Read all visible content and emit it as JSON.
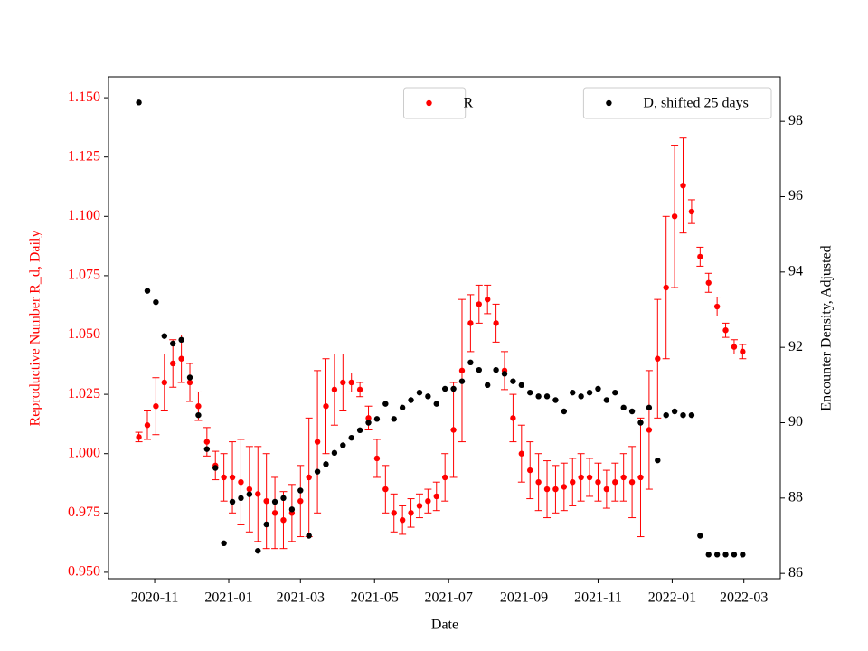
{
  "chart_data": {
    "type": "scatter",
    "xlabel": "Date",
    "ylabel": "Reproductive Number R_d, Daily",
    "y2label": "Encounter Density, Adjusted",
    "x": [
      "2020-10-19",
      "2020-10-26",
      "2020-11-02",
      "2020-11-09",
      "2020-11-16",
      "2020-11-23",
      "2020-11-30",
      "2020-12-07",
      "2020-12-14",
      "2020-12-21",
      "2020-12-28",
      "2021-01-04",
      "2021-01-11",
      "2021-01-18",
      "2021-01-25",
      "2021-02-01",
      "2021-02-08",
      "2021-02-15",
      "2021-02-22",
      "2021-03-01",
      "2021-03-08",
      "2021-03-15",
      "2021-03-22",
      "2021-03-29",
      "2021-04-05",
      "2021-04-12",
      "2021-04-19",
      "2021-04-26",
      "2021-05-03",
      "2021-05-10",
      "2021-05-17",
      "2021-05-24",
      "2021-05-31",
      "2021-06-07",
      "2021-06-14",
      "2021-06-21",
      "2021-06-28",
      "2021-07-05",
      "2021-07-12",
      "2021-07-19",
      "2021-07-26",
      "2021-08-02",
      "2021-08-09",
      "2021-08-16",
      "2021-08-23",
      "2021-08-30",
      "2021-09-06",
      "2021-09-13",
      "2021-09-20",
      "2021-09-27",
      "2021-10-04",
      "2021-10-11",
      "2021-10-18",
      "2021-10-25",
      "2021-11-01",
      "2021-11-08",
      "2021-11-15",
      "2021-11-22",
      "2021-11-29",
      "2021-12-06",
      "2021-12-13",
      "2021-12-20",
      "2021-12-27",
      "2022-01-03",
      "2022-01-10",
      "2022-01-17",
      "2022-01-24",
      "2022-01-31",
      "2022-02-07",
      "2022-02-14",
      "2022-02-21",
      "2022-02-28"
    ],
    "series": [
      {
        "name": "R",
        "color": "#ff0000",
        "legend": "upper center",
        "values": [
          1.007,
          1.012,
          1.02,
          1.03,
          1.038,
          1.04,
          1.03,
          1.02,
          1.005,
          0.995,
          0.99,
          0.99,
          0.988,
          0.985,
          0.983,
          0.98,
          0.975,
          0.972,
          0.975,
          0.98,
          0.99,
          1.005,
          1.02,
          1.027,
          1.03,
          1.03,
          1.027,
          1.015,
          0.998,
          0.985,
          0.975,
          0.972,
          0.975,
          0.978,
          0.98,
          0.982,
          0.99,
          1.01,
          1.035,
          1.055,
          1.063,
          1.065,
          1.055,
          1.035,
          1.015,
          1.0,
          0.993,
          0.988,
          0.985,
          0.985,
          0.986,
          0.988,
          0.99,
          0.99,
          0.988,
          0.985,
          0.988,
          0.99,
          0.988,
          0.99,
          1.01,
          1.04,
          1.07,
          1.1,
          1.113,
          1.102,
          1.083,
          1.072,
          1.062,
          1.052,
          1.045,
          1.043
        ],
        "errors": [
          0.002,
          0.006,
          0.012,
          0.012,
          0.01,
          0.01,
          0.008,
          0.006,
          0.006,
          0.006,
          0.01,
          0.015,
          0.018,
          0.018,
          0.02,
          0.02,
          0.015,
          0.012,
          0.012,
          0.015,
          0.025,
          0.03,
          0.02,
          0.015,
          0.012,
          0.004,
          0.003,
          0.005,
          0.008,
          0.01,
          0.008,
          0.006,
          0.006,
          0.005,
          0.005,
          0.006,
          0.01,
          0.02,
          0.03,
          0.012,
          0.008,
          0.006,
          0.008,
          0.008,
          0.01,
          0.012,
          0.012,
          0.012,
          0.012,
          0.01,
          0.01,
          0.01,
          0.01,
          0.008,
          0.008,
          0.008,
          0.008,
          0.01,
          0.015,
          0.025,
          0.025,
          0.025,
          0.03,
          0.03,
          0.02,
          0.005,
          0.004,
          0.004,
          0.004,
          0.003,
          0.003,
          0.003
        ]
      },
      {
        "name": "D, shifted 25 days",
        "color": "#000000",
        "axis": "y2",
        "legend": "upper right",
        "values": [
          98.5,
          93.5,
          93.2,
          92.3,
          92.1,
          92.2,
          91.2,
          90.2,
          89.3,
          88.8,
          86.8,
          87.9,
          88.0,
          88.1,
          86.6,
          87.3,
          87.9,
          88.0,
          87.7,
          88.2,
          87.0,
          88.7,
          88.9,
          89.2,
          89.4,
          89.6,
          89.8,
          90.0,
          90.1,
          90.5,
          90.1,
          90.4,
          90.6,
          90.8,
          90.7,
          90.5,
          90.9,
          90.9,
          91.1,
          91.6,
          91.4,
          91.0,
          91.4,
          91.3,
          91.1,
          91.0,
          90.8,
          90.7,
          90.7,
          90.6,
          90.3,
          90.8,
          90.7,
          90.8,
          90.9,
          90.6,
          90.8,
          90.4,
          90.3,
          90.0,
          90.4,
          89.0,
          90.2,
          90.3,
          90.2,
          90.2,
          87.0,
          86.5,
          86.5,
          86.5,
          86.5,
          86.5
        ]
      }
    ],
    "xlim": [
      "2020-09-24",
      "2022-03-31"
    ],
    "xticks": [
      "2020-11",
      "2021-01",
      "2021-03",
      "2021-05",
      "2021-07",
      "2021-09",
      "2021-11",
      "2022-01",
      "2022-03"
    ],
    "ylim": [
      0.9473,
      1.1588
    ],
    "yticks": [
      {
        "value": 0.95,
        "label": "0.950"
      },
      {
        "value": 0.975,
        "label": "0.975"
      },
      {
        "value": 1.0,
        "label": "1.000"
      },
      {
        "value": 1.025,
        "label": "1.025"
      },
      {
        "value": 1.05,
        "label": "1.050"
      },
      {
        "value": 1.075,
        "label": "1.075"
      },
      {
        "value": 1.1,
        "label": "1.100"
      },
      {
        "value": 1.125,
        "label": "1.125"
      },
      {
        "value": 1.15,
        "label": "1.150"
      }
    ],
    "y2lim": [
      85.86,
      99.18
    ],
    "y2ticks": [
      86,
      88,
      90,
      92,
      94,
      96,
      98
    ]
  }
}
